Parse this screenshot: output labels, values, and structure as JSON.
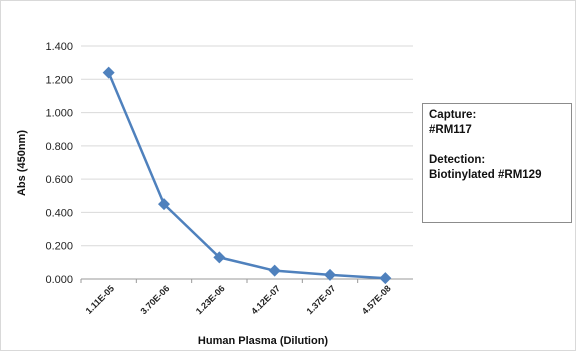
{
  "chart_data": {
    "type": "line",
    "title": "",
    "xlabel": "Human Plasma (Dilution)",
    "ylabel": "Abs (450nm)",
    "ylim": [
      0,
      1.4
    ],
    "yticks": [
      "0.000",
      "0.200",
      "0.400",
      "0.600",
      "0.800",
      "1.000",
      "1.200",
      "1.400"
    ],
    "grid": "horizontal",
    "categories": [
      "1.11E-05",
      "3.70E-06",
      "1.23E-06",
      "4.12E-07",
      "1.37E-07",
      "4.57E-08"
    ],
    "series": [
      {
        "values": [
          1.24,
          0.45,
          0.13,
          0.05,
          0.025,
          0.005
        ],
        "color": "#4f81bd",
        "marker": "diamond"
      }
    ],
    "annotation": {
      "capture_label": "Capture:",
      "capture_value": "#RM117",
      "detection_label": "Detection:",
      "detection_value": "Biotinylated #RM129"
    }
  }
}
